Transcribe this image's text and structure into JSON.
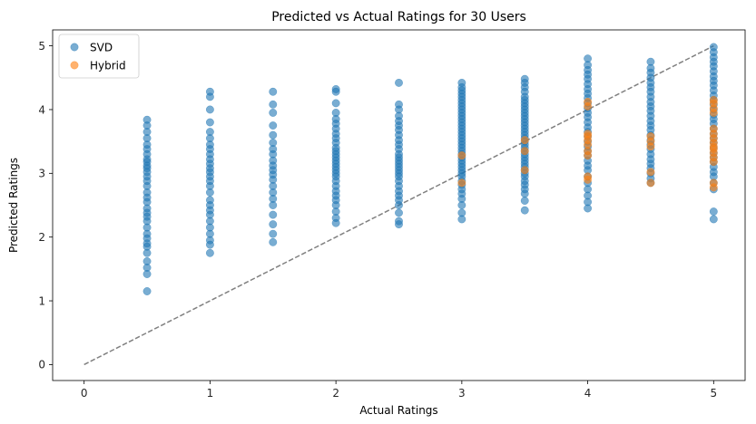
{
  "chart_data": {
    "type": "scatter",
    "title": "Predicted vs Actual Ratings for 30 Users",
    "xlabel": "Actual Ratings",
    "ylabel": "Predicted Ratings",
    "xlim": [
      -0.25,
      5.25
    ],
    "ylim": [
      -0.25,
      5.25
    ],
    "xticks": [
      "0",
      "1",
      "2",
      "3",
      "4",
      "5"
    ],
    "yticks": [
      "0",
      "1",
      "2",
      "3",
      "4",
      "5"
    ],
    "grid": false,
    "legend": "top-left",
    "reference_line": {
      "style": "dashed",
      "color": "#808080",
      "x": [
        0,
        5
      ],
      "y": [
        0,
        5
      ]
    },
    "series": [
      {
        "name": "SVD",
        "color": "#1f77b4",
        "groups": [
          {
            "x": 0.5,
            "y": [
              1.15,
              1.42,
              1.52,
              1.62,
              1.75,
              1.85,
              1.9,
              1.98,
              2.05,
              2.15,
              2.25,
              2.32,
              2.38,
              2.45,
              2.55,
              2.62,
              2.7,
              2.8,
              2.88,
              2.95,
              3.02,
              3.08,
              3.12,
              3.18,
              3.22,
              3.3,
              3.38,
              3.45,
              3.55,
              3.65,
              3.75,
              3.84
            ]
          },
          {
            "x": 1.0,
            "y": [
              1.75,
              1.88,
              1.95,
              2.05,
              2.15,
              2.25,
              2.35,
              2.42,
              2.5,
              2.58,
              2.7,
              2.8,
              2.88,
              2.95,
              3.02,
              3.08,
              3.15,
              3.22,
              3.3,
              3.38,
              3.45,
              3.55,
              3.65,
              3.8,
              4.0,
              4.2,
              4.28
            ]
          },
          {
            "x": 1.5,
            "y": [
              1.92,
              2.05,
              2.2,
              2.35,
              2.5,
              2.6,
              2.7,
              2.8,
              2.9,
              2.98,
              3.05,
              3.12,
              3.2,
              3.3,
              3.38,
              3.48,
              3.6,
              3.75,
              3.95,
              4.08,
              4.28
            ]
          },
          {
            "x": 2.0,
            "y": [
              2.22,
              2.3,
              2.4,
              2.5,
              2.58,
              2.65,
              2.72,
              2.8,
              2.88,
              2.95,
              3.0,
              3.05,
              3.1,
              3.15,
              3.2,
              3.25,
              3.3,
              3.35,
              3.4,
              3.48,
              3.55,
              3.62,
              3.7,
              3.78,
              3.85,
              3.95,
              4.1,
              4.28,
              4.32
            ]
          },
          {
            "x": 2.5,
            "y": [
              2.2,
              2.25,
              2.38,
              2.5,
              2.58,
              2.65,
              2.72,
              2.8,
              2.88,
              2.95,
              3.0,
              3.05,
              3.1,
              3.15,
              3.2,
              3.25,
              3.3,
              3.38,
              3.45,
              3.52,
              3.6,
              3.68,
              3.75,
              3.82,
              3.9,
              4.0,
              4.08,
              4.42
            ]
          },
          {
            "x": 3.0,
            "y": [
              2.28,
              2.38,
              2.5,
              2.6,
              2.68,
              2.75,
              2.82,
              2.88,
              2.95,
              3.0,
              3.05,
              3.1,
              3.15,
              3.2,
              3.25,
              3.3,
              3.35,
              3.4,
              3.45,
              3.5,
              3.55,
              3.6,
              3.65,
              3.7,
              3.75,
              3.8,
              3.85,
              3.9,
              3.95,
              4.0,
              4.05,
              4.1,
              4.15,
              4.2,
              4.25,
              4.3,
              4.35,
              4.42
            ]
          },
          {
            "x": 3.5,
            "y": [
              2.42,
              2.57,
              2.68,
              2.75,
              2.82,
              2.88,
              2.95,
              3.0,
              3.05,
              3.1,
              3.15,
              3.2,
              3.25,
              3.3,
              3.35,
              3.4,
              3.45,
              3.5,
              3.55,
              3.6,
              3.65,
              3.7,
              3.75,
              3.8,
              3.85,
              3.9,
              3.95,
              4.0,
              4.05,
              4.1,
              4.15,
              4.2,
              4.28,
              4.35,
              4.42,
              4.48
            ]
          },
          {
            "x": 4.0,
            "y": [
              2.45,
              2.55,
              2.65,
              2.75,
              2.85,
              2.95,
              3.05,
              3.12,
              3.2,
              3.28,
              3.35,
              3.42,
              3.5,
              3.58,
              3.65,
              3.72,
              3.8,
              3.88,
              3.95,
              4.02,
              4.1,
              4.18,
              4.25,
              4.32,
              4.4,
              4.48,
              4.55,
              4.62,
              4.7,
              4.8
            ]
          },
          {
            "x": 4.5,
            "y": [
              2.85,
              2.92,
              3.0,
              3.08,
              3.15,
              3.22,
              3.3,
              3.38,
              3.45,
              3.52,
              3.6,
              3.68,
              3.75,
              3.82,
              3.9,
              3.98,
              4.05,
              4.12,
              4.2,
              4.28,
              4.35,
              4.42,
              4.5,
              4.58,
              4.65,
              4.75
            ]
          },
          {
            "x": 5.0,
            "y": [
              2.28,
              2.4,
              2.75,
              2.85,
              2.95,
              3.02,
              3.1,
              3.18,
              3.25,
              3.32,
              3.4,
              3.48,
              3.55,
              3.62,
              3.7,
              3.78,
              3.85,
              3.92,
              4.0,
              4.08,
              4.15,
              4.22,
              4.3,
              4.38,
              4.45,
              4.52,
              4.6,
              4.68,
              4.75,
              4.82,
              4.9,
              4.98
            ]
          }
        ]
      },
      {
        "name": "Hybrid",
        "color": "#ff7f0e",
        "groups": [
          {
            "x": 3.0,
            "y": [
              2.85,
              3.28
            ]
          },
          {
            "x": 3.5,
            "y": [
              3.05,
              3.35,
              3.52
            ]
          },
          {
            "x": 4.0,
            "y": [
              2.9,
              2.95,
              3.28,
              3.35,
              3.45,
              3.52,
              3.58,
              3.62,
              4.05,
              4.12
            ]
          },
          {
            "x": 4.5,
            "y": [
              2.85,
              3.02,
              3.42,
              3.5,
              3.58
            ]
          },
          {
            "x": 5.0,
            "y": [
              2.78,
              2.85,
              3.18,
              3.25,
              3.32,
              3.38,
              3.42,
              3.48,
              3.55,
              3.62,
              3.7,
              3.95,
              4.02,
              4.1,
              4.15
            ]
          }
        ]
      }
    ]
  }
}
